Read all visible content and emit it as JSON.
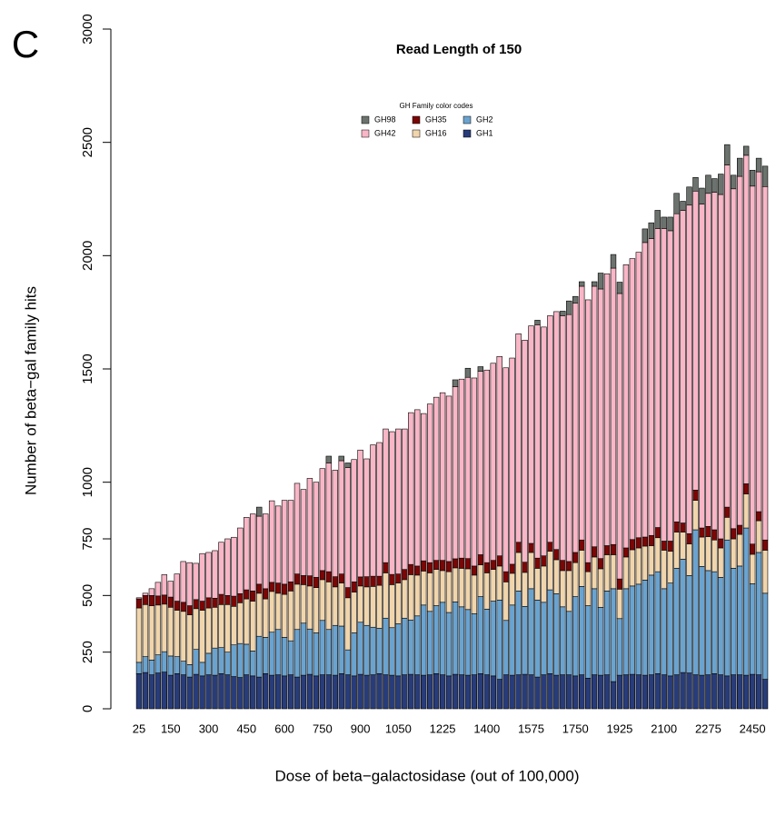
{
  "chart_data": {
    "type": "stacked_bar",
    "panel_label": "C",
    "title": "Read Length of 150",
    "x_label": "Dose of beta−galactosidase (out of 100,000)",
    "y_label": "Number of beta−gal family hits",
    "legend_title": "GH Family color codes",
    "ylim": [
      0,
      3000
    ],
    "yticks": [
      0,
      250,
      500,
      750,
      1000,
      1500,
      2000,
      2500,
      3000
    ],
    "categories": [
      "25",
      null,
      null,
      null,
      null,
      "150",
      null,
      null,
      null,
      null,
      null,
      "300",
      null,
      null,
      null,
      null,
      null,
      "450",
      null,
      null,
      null,
      null,
      null,
      "600",
      null,
      null,
      null,
      null,
      null,
      "750",
      null,
      null,
      null,
      null,
      null,
      "900",
      null,
      null,
      null,
      null,
      null,
      "1050",
      null,
      null,
      null,
      null,
      null,
      null,
      "1225",
      null,
      null,
      null,
      null,
      null,
      null,
      "1400",
      null,
      null,
      null,
      null,
      null,
      null,
      "1575",
      null,
      null,
      null,
      null,
      null,
      null,
      "1750",
      null,
      null,
      null,
      null,
      null,
      null,
      "1925",
      null,
      null,
      null,
      null,
      null,
      null,
      "2100",
      null,
      null,
      null,
      null,
      null,
      null,
      "2275",
      null,
      null,
      null,
      null,
      null,
      null,
      "2450",
      null,
      null
    ],
    "series": [
      {
        "name": "GH1",
        "color": "#283c7a",
        "values": [
          155,
          160,
          150,
          158,
          162,
          148,
          155,
          150,
          140,
          152,
          145,
          150,
          148,
          155,
          150,
          142,
          138,
          150,
          145,
          140,
          155,
          148,
          150,
          145,
          150,
          140,
          148,
          152,
          145,
          150,
          150,
          148,
          155,
          150,
          145,
          152,
          148,
          150,
          155,
          150,
          148,
          145,
          150,
          152,
          150,
          148,
          150,
          155,
          150,
          145,
          152,
          150,
          148,
          150,
          155,
          150,
          145,
          130,
          150,
          148,
          150,
          152,
          150,
          140,
          150,
          155,
          148,
          150,
          150,
          145,
          150,
          135,
          150,
          148,
          150,
          120,
          148,
          150,
          152,
          150,
          148,
          150,
          155,
          150,
          145,
          150,
          160,
          158,
          150,
          148,
          150,
          155,
          150,
          145,
          150,
          150,
          148,
          152,
          150,
          130
        ]
      },
      {
        "name": "GH2",
        "color": "#6ba3cf",
        "values": [
          50,
          70,
          65,
          80,
          90,
          85,
          75,
          60,
          55,
          110,
          60,
          95,
          120,
          115,
          100,
          140,
          150,
          135,
          110,
          180,
          160,
          190,
          200,
          170,
          150,
          210,
          230,
          200,
          190,
          240,
          200,
          220,
          210,
          110,
          190,
          230,
          220,
          210,
          200,
          250,
          210,
          230,
          250,
          240,
          260,
          310,
          280,
          300,
          320,
          280,
          320,
          300,
          290,
          270,
          340,
          290,
          330,
          350,
          240,
          310,
          370,
          300,
          380,
          340,
          320,
          370,
          360,
          300,
          280,
          350,
          390,
          320,
          380,
          300,
          370,
          410,
          250,
          380,
          390,
          400,
          420,
          440,
          450,
          380,
          410,
          470,
          500,
          430,
          640,
          480,
          460,
          450,
          430,
          600,
          470,
          480,
          650,
          400,
          540,
          380
        ]
      },
      {
        "name": "GH16",
        "color": "#f0d5ad",
        "values": [
          240,
          230,
          240,
          220,
          210,
          215,
          205,
          220,
          220,
          180,
          230,
          200,
          180,
          190,
          210,
          170,
          180,
          200,
          220,
          190,
          170,
          180,
          160,
          190,
          220,
          200,
          170,
          190,
          200,
          180,
          210,
          170,
          190,
          230,
          180,
          160,
          170,
          180,
          190,
          200,
          190,
          180,
          170,
          200,
          180,
          150,
          170,
          160,
          140,
          180,
          150,
          170,
          180,
          170,
          140,
          160,
          140,
          150,
          170,
          140,
          170,
          150,
          160,
          140,
          160,
          170,
          150,
          160,
          180,
          150,
          160,
          150,
          140,
          170,
          160,
          150,
          130,
          140,
          160,
          160,
          150,
          130,
          150,
          170,
          140,
          160,
          120,
          140,
          130,
          130,
          150,
          140,
          130,
          100,
          130,
          140,
          150,
          130,
          140,
          190
        ]
      },
      {
        "name": "GH35",
        "color": "#7a0606",
        "values": [
          40,
          40,
          45,
          40,
          40,
          45,
          40,
          40,
          40,
          40,
          40,
          45,
          40,
          45,
          40,
          45,
          40,
          40,
          45,
          40,
          45,
          40,
          45,
          45,
          40,
          45,
          40,
          45,
          45,
          40,
          45,
          45,
          40,
          45,
          45,
          40,
          45,
          45,
          40,
          45,
          45,
          40,
          45,
          45,
          40,
          45,
          45,
          40,
          45,
          45,
          40,
          45,
          45,
          40,
          45,
          45,
          40,
          45,
          45,
          40,
          45,
          45,
          40,
          45,
          45,
          40,
          45,
          45,
          40,
          45,
          45,
          40,
          45,
          45,
          40,
          45,
          45,
          40,
          45,
          45,
          40,
          45,
          45,
          40,
          45,
          45,
          40,
          45,
          45,
          40,
          45,
          45,
          40,
          45,
          45,
          40,
          45,
          45,
          40,
          45
        ]
      },
      {
        "name": "GH42",
        "color": "#f8b6c6",
        "values": [
          5,
          10,
          30,
          60,
          90,
          70,
          120,
          180,
          190,
          160,
          210,
          200,
          210,
          230,
          250,
          260,
          290,
          320,
          340,
          300,
          330,
          360,
          340,
          370,
          360,
          400,
          380,
          430,
          420,
          450,
          480,
          470,
          500,
          530,
          540,
          560,
          520,
          580,
          590,
          590,
          630,
          640,
          620,
          670,
          690,
          650,
          700,
          720,
          740,
          730,
          760,
          790,
          800,
          830,
          810,
          850,
          870,
          880,
          900,
          910,
          920,
          980,
          960,
          1030,
          1010,
          1000,
          1050,
          1080,
          1090,
          1100,
          1120,
          1160,
          1150,
          1190,
          1200,
          1220,
          1260,
          1250,
          1240,
          1260,
          1300,
          1310,
          1320,
          1380,
          1370,
          1360,
          1380,
          1450,
          1320,
          1430,
          1470,
          1490,
          1520,
          1510,
          1500,
          1540,
          1450,
          1580,
          1500,
          1560
        ]
      },
      {
        "name": "GH98",
        "color": "#6c736e",
        "values": [
          0,
          0,
          0,
          0,
          0,
          0,
          0,
          0,
          0,
          0,
          0,
          0,
          0,
          0,
          0,
          0,
          0,
          0,
          0,
          40,
          0,
          0,
          0,
          0,
          0,
          0,
          0,
          0,
          0,
          0,
          30,
          0,
          20,
          20,
          0,
          0,
          0,
          0,
          0,
          0,
          0,
          0,
          0,
          0,
          0,
          0,
          0,
          0,
          0,
          0,
          30,
          0,
          40,
          0,
          20,
          0,
          0,
          0,
          0,
          0,
          0,
          0,
          0,
          20,
          0,
          0,
          0,
          20,
          60,
          30,
          20,
          0,
          20,
          70,
          0,
          60,
          50,
          0,
          0,
          0,
          60,
          70,
          80,
          50,
          60,
          90,
          40,
          80,
          60,
          70,
          80,
          60,
          90,
          90,
          60,
          80,
          40,
          70,
          60,
          90
        ]
      }
    ]
  }
}
